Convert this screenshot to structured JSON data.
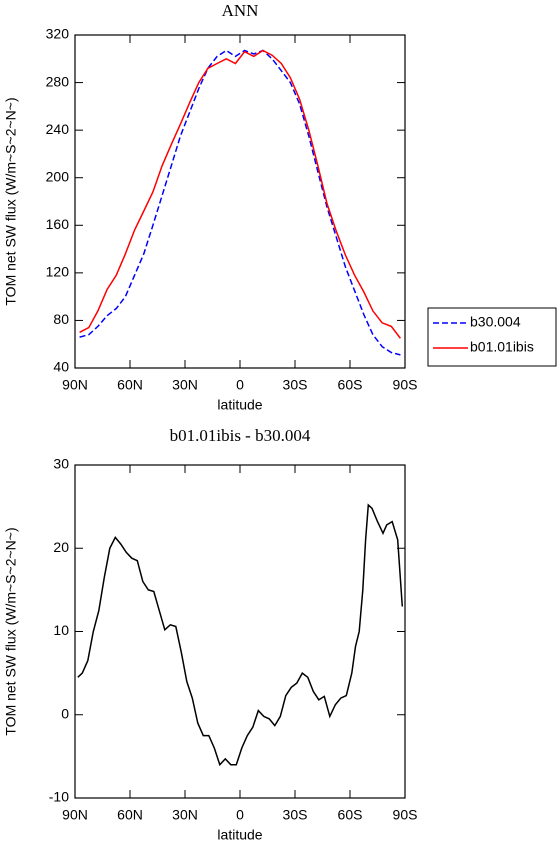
{
  "chart_data": [
    {
      "type": "line",
      "title": "ANN",
      "xlabel": "latitude",
      "ylabel": "TOM net SW flux (W/m~S~2~N~)",
      "x": [
        87.5,
        82.5,
        77.5,
        72.5,
        67.5,
        62.5,
        57.5,
        52.5,
        47.5,
        42.5,
        37.5,
        32.5,
        27.5,
        22.5,
        17.5,
        12.5,
        7.5,
        2.5,
        -2.5,
        -7.5,
        -12.5,
        -17.5,
        -22.5,
        -27.5,
        -32.5,
        -37.5,
        -42.5,
        -47.5,
        -52.5,
        -57.5,
        -62.5,
        -67.5,
        -72.5,
        -77.5,
        -82.5,
        -87.5
      ],
      "series": [
        {
          "name": "b30.004",
          "color": "#0000ff",
          "style": "dashed",
          "values": [
            66,
            68,
            75,
            84,
            90,
            100,
            118,
            136,
            160,
            185,
            210,
            235,
            255,
            275,
            292,
            302,
            307,
            302,
            307,
            304,
            307,
            300,
            290,
            280,
            262,
            235,
            205,
            175,
            150,
            125,
            105,
            85,
            68,
            58,
            53,
            51
          ]
        },
        {
          "name": "b01.01ibis",
          "color": "#ff0000",
          "style": "solid",
          "values": [
            70,
            74,
            88,
            106,
            118,
            136,
            156,
            172,
            188,
            210,
            228,
            245,
            263,
            280,
            292,
            296,
            300,
            296,
            306,
            302,
            307,
            303,
            296,
            284,
            266,
            240,
            210,
            178,
            155,
            135,
            118,
            104,
            88,
            78,
            75,
            65
          ]
        }
      ],
      "xlim": [
        90,
        -90
      ],
      "xticks": [
        {
          "value": 90,
          "label": "90N"
        },
        {
          "value": 60,
          "label": "60N"
        },
        {
          "value": 30,
          "label": "30N"
        },
        0,
        {
          "value": -30,
          "label": "30S"
        },
        {
          "value": -60,
          "label": "60S"
        },
        {
          "value": -90,
          "label": "90S"
        }
      ],
      "ylim": [
        40,
        320
      ],
      "yticks": [
        40,
        80,
        120,
        160,
        200,
        240,
        280,
        320
      ]
    },
    {
      "type": "line",
      "title": "b01.01ibis - b30.004",
      "xlabel": "latitude",
      "ylabel": "TOM net SW flux (W/m~S~2~N~)",
      "x": [
        88.5,
        86,
        83,
        80,
        77,
        74,
        71,
        68,
        65,
        62,
        59,
        56,
        53,
        50,
        47,
        44,
        41,
        38,
        35,
        32,
        29,
        26,
        23,
        20,
        17,
        14,
        11,
        8,
        5,
        2,
        -1,
        -4,
        -7,
        -10,
        -13,
        -16,
        -19,
        -22,
        -25,
        -28,
        -31,
        -34,
        -37,
        -40,
        -43,
        -46,
        -49,
        -52,
        -55,
        -58,
        -61,
        -63,
        -65,
        -67,
        -68.5,
        -70,
        -72,
        -75,
        -78,
        -80,
        -83,
        -86,
        -88.5
      ],
      "values": [
        4.5,
        5,
        6.5,
        10,
        12.5,
        16.5,
        20,
        21.3,
        20.5,
        19.5,
        18.8,
        18.5,
        16,
        15,
        14.8,
        12.5,
        10.2,
        10.8,
        10.6,
        7.5,
        4,
        2,
        -1,
        -2.5,
        -2.5,
        -4,
        -6,
        -5.3,
        -6,
        -6,
        -4,
        -2.5,
        -1.5,
        0.5,
        -0.2,
        -0.5,
        -1.3,
        -0.2,
        2.3,
        3.3,
        3.8,
        5,
        4.5,
        2.8,
        1.8,
        2.2,
        -0.2,
        1.2,
        2,
        2.3,
        5,
        8.2,
        10,
        15,
        21,
        25.2,
        24.8,
        23.2,
        21.8,
        22.8,
        23.2,
        21,
        13
      ],
      "color": "#000000",
      "xlim": [
        90,
        -90
      ],
      "xticks": [
        {
          "value": 90,
          "label": "90N"
        },
        {
          "value": 60,
          "label": "60N"
        },
        {
          "value": 30,
          "label": "30N"
        },
        0,
        {
          "value": -30,
          "label": "30S"
        },
        {
          "value": -60,
          "label": "60S"
        },
        {
          "value": -90,
          "label": "90S"
        }
      ],
      "ylim": [
        -10,
        30
      ],
      "yticks": [
        -10,
        0,
        10,
        20,
        30
      ]
    }
  ]
}
